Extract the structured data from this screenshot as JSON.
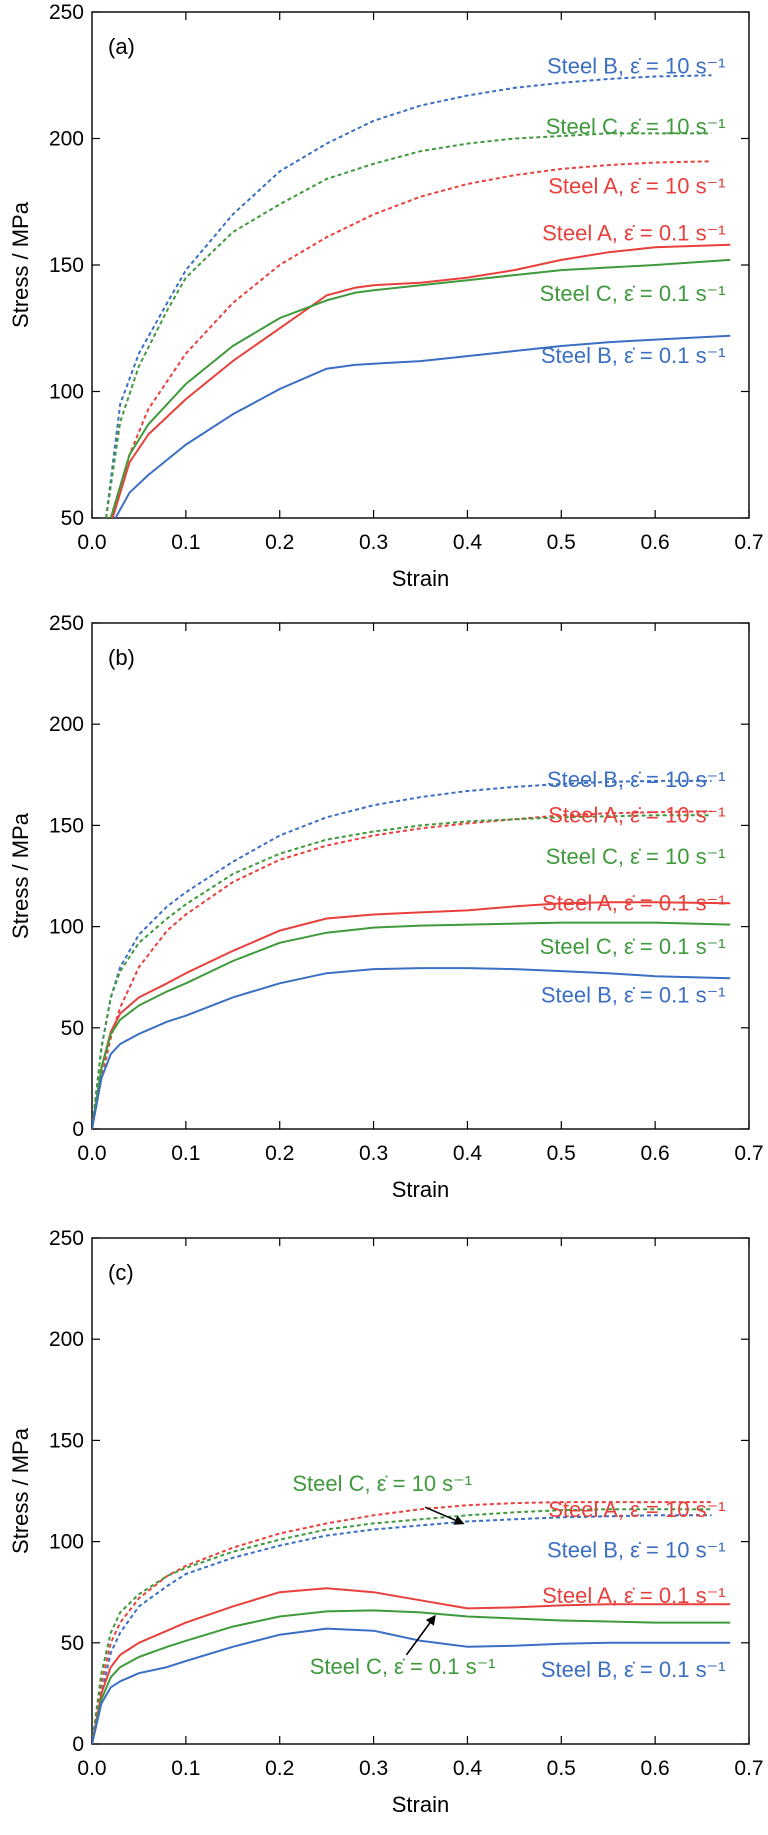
{
  "chart_data": [
    {
      "type": "line",
      "panel_label": "(a)",
      "xlabel": "Strain",
      "ylabel": "Stress / MPa",
      "xlim": [
        0.0,
        0.7
      ],
      "ylim": [
        50,
        250
      ],
      "xticks": [
        "0.0",
        "0.1",
        "0.2",
        "0.3",
        "0.4",
        "0.5",
        "0.6",
        "0.7"
      ],
      "yticks": [
        "50",
        "100",
        "150",
        "200",
        "250"
      ],
      "colors": {
        "A": "#e8403c",
        "B": "#3a6fc4",
        "C": "#3f9a3c"
      },
      "series": [
        {
          "name": "Steel B, ε̇ = 10 s⁻¹",
          "color": "#3a6fc4",
          "dash": true,
          "x": [
            0.015,
            0.03,
            0.05,
            0.08,
            0.1,
            0.15,
            0.2,
            0.25,
            0.3,
            0.35,
            0.4,
            0.45,
            0.5,
            0.55,
            0.6,
            0.66
          ],
          "y": [
            50,
            95,
            115,
            135,
            148,
            170,
            187,
            198,
            207,
            213,
            217,
            220,
            222,
            223.5,
            224.5,
            225
          ]
        },
        {
          "name": "Steel C, ε̇ = 10 s⁻¹",
          "color": "#3f9a3c",
          "dash": true,
          "x": [
            0.015,
            0.03,
            0.05,
            0.08,
            0.1,
            0.15,
            0.2,
            0.25,
            0.3,
            0.35,
            0.4,
            0.45,
            0.5,
            0.55,
            0.6,
            0.66
          ],
          "y": [
            50,
            88,
            110,
            132,
            145,
            163,
            174,
            184,
            190,
            195,
            198,
            200,
            201,
            202,
            202,
            202
          ]
        },
        {
          "name": "Steel A, ε̇ = 10 s⁻¹",
          "color": "#e8403c",
          "dash": true,
          "x": [
            0.02,
            0.04,
            0.06,
            0.1,
            0.15,
            0.2,
            0.25,
            0.3,
            0.35,
            0.4,
            0.45,
            0.5,
            0.55,
            0.6,
            0.66
          ],
          "y": [
            50,
            75,
            93,
            115,
            135,
            150,
            161,
            170,
            177,
            182,
            185.5,
            188,
            189.5,
            190.5,
            191
          ]
        },
        {
          "name": "Steel A, ε̇ = 0.1 s⁻¹",
          "color": "#e8403c",
          "dash": false,
          "x": [
            0.022,
            0.04,
            0.06,
            0.1,
            0.15,
            0.2,
            0.25,
            0.28,
            0.3,
            0.35,
            0.4,
            0.45,
            0.5,
            0.55,
            0.6,
            0.68
          ],
          "y": [
            50,
            72,
            83,
            97,
            112,
            125,
            138,
            141,
            142,
            143,
            145,
            148,
            152,
            155,
            157,
            158
          ]
        },
        {
          "name": "Steel C, ε̇ = 0.1 s⁻¹",
          "color": "#3f9a3c",
          "dash": false,
          "x": [
            0.02,
            0.04,
            0.06,
            0.1,
            0.15,
            0.2,
            0.25,
            0.28,
            0.3,
            0.35,
            0.4,
            0.45,
            0.5,
            0.55,
            0.6,
            0.68
          ],
          "y": [
            50,
            75,
            87,
            103,
            118,
            129,
            136,
            139,
            140,
            142,
            144,
            146,
            148,
            149,
            150,
            152
          ]
        },
        {
          "name": "Steel B, ε̇ = 0.1 s⁻¹",
          "color": "#3a6fc4",
          "dash": false,
          "x": [
            0.025,
            0.04,
            0.06,
            0.1,
            0.15,
            0.2,
            0.25,
            0.28,
            0.3,
            0.35,
            0.4,
            0.45,
            0.5,
            0.55,
            0.6,
            0.68
          ],
          "y": [
            50,
            60,
            67,
            79,
            91,
            101,
            109,
            110.5,
            111,
            112,
            114,
            116,
            118,
            119.5,
            120.5,
            122
          ]
        }
      ],
      "labels": [
        {
          "text": "Steel B, ε̇ = 10 s⁻¹",
          "color": "#3a6fc4",
          "at": [
            0.675,
            228.5
          ]
        },
        {
          "text": "Steel C, ε̇ = 10 s⁻¹",
          "color": "#3f9a3c",
          "at": [
            0.675,
            204.5
          ]
        },
        {
          "text": "Steel A, ε̇ = 10 s⁻¹",
          "color": "#e8403c",
          "at": [
            0.675,
            181
          ]
        },
        {
          "text": "Steel A, ε̇ = 0.1 s⁻¹",
          "color": "#e8403c",
          "at": [
            0.675,
            162.5
          ]
        },
        {
          "text": "Steel C, ε̇ = 0.1 s⁻¹",
          "color": "#3f9a3c",
          "at": [
            0.675,
            138.5
          ]
        },
        {
          "text": "Steel B, ε̇ = 0.1 s⁻¹",
          "color": "#3a6fc4",
          "at": [
            0.675,
            114
          ]
        }
      ]
    },
    {
      "type": "line",
      "panel_label": "(b)",
      "xlabel": "Strain",
      "ylabel": "Stress / MPa",
      "xlim": [
        0.0,
        0.7
      ],
      "ylim": [
        0,
        250
      ],
      "xticks": [
        "0.0",
        "0.1",
        "0.2",
        "0.3",
        "0.4",
        "0.5",
        "0.6",
        "0.7"
      ],
      "yticks": [
        "0",
        "50",
        "100",
        "150",
        "200",
        "250"
      ],
      "colors": {
        "A": "#e8403c",
        "B": "#3a6fc4",
        "C": "#3f9a3c"
      },
      "series": [
        {
          "name": "Steel B, ε̇ = 10 s⁻¹",
          "color": "#3a6fc4",
          "dash": true,
          "x": [
            0.0,
            0.01,
            0.02,
            0.03,
            0.05,
            0.08,
            0.1,
            0.15,
            0.2,
            0.25,
            0.3,
            0.35,
            0.4,
            0.45,
            0.5,
            0.55,
            0.6,
            0.66
          ],
          "y": [
            0,
            40,
            65,
            80,
            96,
            110,
            117,
            132,
            145,
            154,
            160,
            164,
            167,
            169,
            170.5,
            171.5,
            172,
            172
          ]
        },
        {
          "name": "Steel A, ε̇ = 10 s⁻¹",
          "color": "#e8403c",
          "dash": true,
          "x": [
            0.0,
            0.01,
            0.02,
            0.03,
            0.05,
            0.08,
            0.1,
            0.15,
            0.2,
            0.25,
            0.3,
            0.35,
            0.4,
            0.45,
            0.5,
            0.55,
            0.6,
            0.66
          ],
          "y": [
            0,
            25,
            45,
            60,
            80,
            98,
            106,
            122,
            133,
            140,
            145,
            148.5,
            151,
            153,
            155,
            156,
            156.5,
            157
          ]
        },
        {
          "name": "Steel C, ε̇ = 10 s⁻¹",
          "color": "#3f9a3c",
          "dash": true,
          "x": [
            0.0,
            0.01,
            0.02,
            0.03,
            0.05,
            0.08,
            0.1,
            0.15,
            0.2,
            0.25,
            0.3,
            0.35,
            0.4,
            0.45,
            0.5,
            0.55,
            0.6,
            0.66
          ],
          "y": [
            0,
            40,
            65,
            78,
            92,
            104,
            111,
            126,
            136,
            143,
            147,
            150,
            152,
            153,
            154,
            154.5,
            155,
            155
          ]
        },
        {
          "name": "Steel A, ε̇ = 0.1 s⁻¹",
          "color": "#e8403c",
          "dash": false,
          "x": [
            0.0,
            0.01,
            0.02,
            0.03,
            0.05,
            0.08,
            0.1,
            0.15,
            0.2,
            0.25,
            0.3,
            0.35,
            0.4,
            0.45,
            0.5,
            0.55,
            0.6,
            0.68
          ],
          "y": [
            0,
            30,
            48,
            57,
            65,
            72,
            77,
            88,
            98,
            104,
            106,
            107,
            108,
            110,
            111.5,
            112,
            112,
            111.5
          ]
        },
        {
          "name": "Steel C, ε̇ = 0.1 s⁻¹",
          "color": "#3f9a3c",
          "dash": false,
          "x": [
            0.0,
            0.01,
            0.02,
            0.03,
            0.05,
            0.08,
            0.1,
            0.15,
            0.2,
            0.25,
            0.3,
            0.35,
            0.4,
            0.45,
            0.5,
            0.55,
            0.6,
            0.68
          ],
          "y": [
            0,
            30,
            47,
            54,
            61,
            68,
            72,
            83,
            92,
            97,
            99.5,
            100.5,
            101,
            101.5,
            102,
            102,
            102,
            101
          ]
        },
        {
          "name": "Steel B, ε̇ = 0.1 s⁻¹",
          "color": "#3a6fc4",
          "dash": false,
          "x": [
            0.0,
            0.01,
            0.02,
            0.03,
            0.05,
            0.08,
            0.1,
            0.15,
            0.2,
            0.25,
            0.3,
            0.35,
            0.4,
            0.45,
            0.5,
            0.55,
            0.6,
            0.68
          ],
          "y": [
            0,
            25,
            37,
            42,
            47,
            53,
            56,
            65,
            72,
            77,
            79,
            79.5,
            79.5,
            79,
            78,
            77,
            75.5,
            74.5
          ]
        }
      ],
      "labels": [
        {
          "text": "Steel B, ε̇ = 10 s⁻¹",
          "color": "#3a6fc4",
          "at": [
            0.675,
            172.5
          ]
        },
        {
          "text": "Steel A, ε̇ = 10 s⁻¹",
          "color": "#e8403c",
          "at": [
            0.675,
            155
          ]
        },
        {
          "text": "Steel C, ε̇ = 10 s⁻¹",
          "color": "#3f9a3c",
          "at": [
            0.675,
            134.5
          ]
        },
        {
          "text": "Steel A, ε̇ = 0.1 s⁻¹",
          "color": "#e8403c",
          "at": [
            0.675,
            111.5
          ]
        },
        {
          "text": "Steel C, ε̇ = 0.1 s⁻¹",
          "color": "#3f9a3c",
          "at": [
            0.675,
            90
          ]
        },
        {
          "text": "Steel B, ε̇ = 0.1 s⁻¹",
          "color": "#3a6fc4",
          "at": [
            0.675,
            66
          ]
        }
      ]
    },
    {
      "type": "line",
      "panel_label": "(c)",
      "xlabel": "Strain",
      "ylabel": "Stress / MPa",
      "xlim": [
        0.0,
        0.7
      ],
      "ylim": [
        0,
        250
      ],
      "xticks": [
        "0.0",
        "0.1",
        "0.2",
        "0.3",
        "0.4",
        "0.5",
        "0.6",
        "0.7"
      ],
      "yticks": [
        "0",
        "50",
        "100",
        "150",
        "200",
        "250"
      ],
      "colors": {
        "A": "#e8403c",
        "B": "#3a6fc4",
        "C": "#3f9a3c"
      },
      "series": [
        {
          "name": "Steel A, ε̇ = 10 s⁻¹",
          "color": "#e8403c",
          "dash": true,
          "x": [
            0.0,
            0.01,
            0.02,
            0.03,
            0.05,
            0.08,
            0.1,
            0.15,
            0.2,
            0.25,
            0.3,
            0.35,
            0.4,
            0.45,
            0.5,
            0.55,
            0.6,
            0.66
          ],
          "y": [
            0,
            30,
            50,
            60,
            72,
            83,
            88,
            97,
            104,
            109,
            113,
            116,
            118,
            119,
            119.5,
            119.5,
            119.5,
            119.5
          ]
        },
        {
          "name": "Steel C, ε̇ = 10 s⁻¹",
          "color": "#3f9a3c",
          "dash": true,
          "x": [
            0.0,
            0.01,
            0.02,
            0.03,
            0.05,
            0.08,
            0.1,
            0.15,
            0.2,
            0.25,
            0.3,
            0.35,
            0.4,
            0.45,
            0.5,
            0.55,
            0.6,
            0.66
          ],
          "y": [
            0,
            35,
            55,
            65,
            74,
            83,
            87,
            95,
            101,
            106,
            109,
            111,
            113,
            114.5,
            115.5,
            116,
            116,
            116
          ]
        },
        {
          "name": "Steel B, ε̇ = 10 s⁻¹",
          "color": "#3a6fc4",
          "dash": true,
          "x": [
            0.0,
            0.01,
            0.02,
            0.03,
            0.05,
            0.08,
            0.1,
            0.15,
            0.2,
            0.25,
            0.3,
            0.35,
            0.4,
            0.45,
            0.5,
            0.55,
            0.6,
            0.66
          ],
          "y": [
            0,
            25,
            45,
            55,
            68,
            78,
            84,
            92,
            98,
            103,
            106,
            108,
            110,
            111,
            112,
            112.5,
            113,
            113
          ]
        },
        {
          "name": "Steel A, ε̇ = 0.1 s⁻¹",
          "color": "#e8403c",
          "dash": false,
          "x": [
            0.0,
            0.01,
            0.02,
            0.03,
            0.05,
            0.08,
            0.1,
            0.15,
            0.2,
            0.25,
            0.3,
            0.35,
            0.4,
            0.45,
            0.5,
            0.55,
            0.6,
            0.68
          ],
          "y": [
            0,
            25,
            38,
            44,
            50,
            56,
            60,
            68,
            75,
            77,
            75,
            71,
            67,
            67.5,
            68.5,
            69,
            69,
            69
          ]
        },
        {
          "name": "Steel C, ε̇ = 0.1 s⁻¹",
          "color": "#3f9a3c",
          "dash": false,
          "x": [
            0.0,
            0.01,
            0.02,
            0.03,
            0.05,
            0.08,
            0.1,
            0.15,
            0.2,
            0.25,
            0.3,
            0.35,
            0.4,
            0.45,
            0.5,
            0.55,
            0.6,
            0.68
          ],
          "y": [
            0,
            22,
            33,
            38,
            43,
            48,
            51,
            58,
            63,
            65.5,
            66,
            65,
            63,
            62,
            61,
            60.5,
            60,
            60
          ]
        },
        {
          "name": "Steel B, ε̇ = 0.1 s⁻¹",
          "color": "#3a6fc4",
          "dash": false,
          "x": [
            0.0,
            0.01,
            0.02,
            0.03,
            0.05,
            0.08,
            0.1,
            0.15,
            0.2,
            0.25,
            0.3,
            0.35,
            0.4,
            0.45,
            0.5,
            0.55,
            0.6,
            0.68
          ],
          "y": [
            0,
            20,
            28,
            31,
            35,
            38,
            41,
            48,
            54,
            57,
            56,
            51,
            48,
            48.5,
            49.5,
            50,
            50,
            50
          ]
        }
      ],
      "labels": [
        {
          "text": "Steel A, ε̇ = 10 s⁻¹",
          "color": "#e8403c",
          "at": [
            0.675,
            115.5
          ]
        },
        {
          "text": "Steel B, ε̇ = 10 s⁻¹",
          "color": "#3a6fc4",
          "at": [
            0.675,
            95.5
          ]
        },
        {
          "text": "Steel A, ε̇ = 0.1 s⁻¹",
          "color": "#e8403c",
          "at": [
            0.675,
            73
          ]
        },
        {
          "text": "Steel B, ε̇ = 0.1 s⁻¹",
          "color": "#3a6fc4",
          "at": [
            0.675,
            36.5
          ]
        },
        {
          "text": "Steel C, ε̇ = 10 s⁻¹",
          "color": "#3f9a3c",
          "at": [
            0.405,
            128.5
          ]
        },
        {
          "text": "Steel C, ε̇ = 0.1 s⁻¹",
          "color": "#3f9a3c",
          "at": [
            0.43,
            38
          ]
        }
      ],
      "arrows": [
        {
          "from": [
            0.355,
            117
          ],
          "to": [
            0.395,
            109
          ]
        },
        {
          "from": [
            0.335,
            44
          ],
          "to": [
            0.365,
            63
          ]
        }
      ]
    }
  ]
}
